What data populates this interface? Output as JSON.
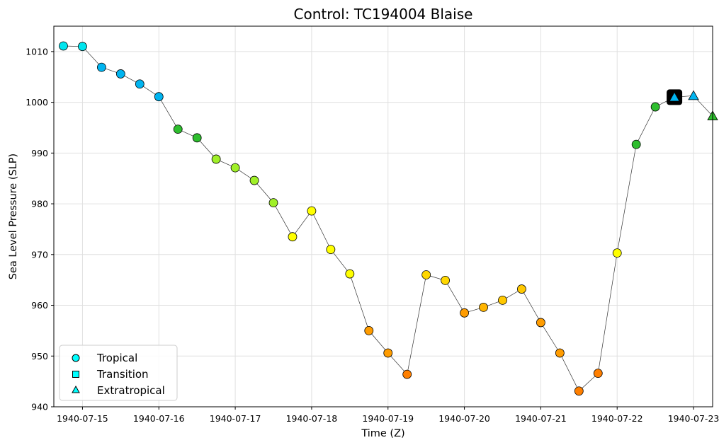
{
  "chart_data": {
    "type": "scatter",
    "title": "Control: TC194004 Blaise",
    "xlabel": "Time (Z)",
    "ylabel": "Sea Level Pressure (SLP)",
    "ylim": [
      940,
      1015
    ],
    "yticks": [
      940,
      950,
      960,
      970,
      980,
      990,
      1000,
      1010
    ],
    "xlim": [
      "1940-07-14 15:00",
      "1940-07-23 06:00"
    ],
    "xticks": [
      "1940-07-15",
      "1940-07-16",
      "1940-07-17",
      "1940-07-18",
      "1940-07-19",
      "1940-07-20",
      "1940-07-21",
      "1940-07-22",
      "1940-07-23"
    ],
    "grid": true,
    "legend": {
      "placement": "lower-left",
      "entries": [
        {
          "label": "Tropical",
          "marker": "circle"
        },
        {
          "label": "Transition",
          "marker": "square"
        },
        {
          "label": "Extratropical",
          "marker": "triangle"
        }
      ]
    },
    "colors": {
      "line": "#333333",
      "legend_fill": "#00ffff",
      "grid": "#e0e0e0"
    },
    "points": [
      {
        "time": "1940-07-14 18:00",
        "slp": 1011.1,
        "marker": "circle",
        "color": "#00e5ee"
      },
      {
        "time": "1940-07-15 00:00",
        "slp": 1011.0,
        "marker": "circle",
        "color": "#00e5ee"
      },
      {
        "time": "1940-07-15 06:00",
        "slp": 1006.9,
        "marker": "circle",
        "color": "#00b4f0"
      },
      {
        "time": "1940-07-15 12:00",
        "slp": 1005.6,
        "marker": "circle",
        "color": "#00b4f0"
      },
      {
        "time": "1940-07-15 18:00",
        "slp": 1003.6,
        "marker": "circle",
        "color": "#00b4f0"
      },
      {
        "time": "1940-07-16 00:00",
        "slp": 1001.1,
        "marker": "circle",
        "color": "#00b4f0"
      },
      {
        "time": "1940-07-16 06:00",
        "slp": 994.7,
        "marker": "circle",
        "color": "#2ebe2e"
      },
      {
        "time": "1940-07-16 12:00",
        "slp": 993.0,
        "marker": "circle",
        "color": "#2ebe2e"
      },
      {
        "time": "1940-07-16 18:00",
        "slp": 988.8,
        "marker": "circle",
        "color": "#a0f028"
      },
      {
        "time": "1940-07-17 00:00",
        "slp": 987.1,
        "marker": "circle",
        "color": "#a0f028"
      },
      {
        "time": "1940-07-17 06:00",
        "slp": 984.6,
        "marker": "circle",
        "color": "#a0f028"
      },
      {
        "time": "1940-07-17 12:00",
        "slp": 980.2,
        "marker": "circle",
        "color": "#a0f028"
      },
      {
        "time": "1940-07-17 18:00",
        "slp": 973.5,
        "marker": "circle",
        "color": "#ffff00"
      },
      {
        "time": "1940-07-18 00:00",
        "slp": 978.6,
        "marker": "circle",
        "color": "#ffff00"
      },
      {
        "time": "1940-07-18 06:00",
        "slp": 971.0,
        "marker": "circle",
        "color": "#ffff00"
      },
      {
        "time": "1940-07-18 12:00",
        "slp": 966.2,
        "marker": "circle",
        "color": "#ffff00"
      },
      {
        "time": "1940-07-18 18:00",
        "slp": 955.0,
        "marker": "circle",
        "color": "#ff9c00"
      },
      {
        "time": "1940-07-19 00:00",
        "slp": 950.6,
        "marker": "circle",
        "color": "#ff9c00"
      },
      {
        "time": "1940-07-19 06:00",
        "slp": 946.4,
        "marker": "circle",
        "color": "#ff7f00"
      },
      {
        "time": "1940-07-19 12:00",
        "slp": 966.0,
        "marker": "circle",
        "color": "#ffd700"
      },
      {
        "time": "1940-07-19 18:00",
        "slp": 964.9,
        "marker": "circle",
        "color": "#ffd700"
      },
      {
        "time": "1940-07-20 00:00",
        "slp": 958.5,
        "marker": "circle",
        "color": "#ff9c00"
      },
      {
        "time": "1940-07-20 06:00",
        "slp": 959.6,
        "marker": "circle",
        "color": "#ffb400"
      },
      {
        "time": "1940-07-20 12:00",
        "slp": 961.0,
        "marker": "circle",
        "color": "#ffc800"
      },
      {
        "time": "1940-07-20 18:00",
        "slp": 963.2,
        "marker": "circle",
        "color": "#ffc800"
      },
      {
        "time": "1940-07-21 00:00",
        "slp": 956.6,
        "marker": "circle",
        "color": "#ff9c00"
      },
      {
        "time": "1940-07-21 06:00",
        "slp": 950.6,
        "marker": "circle",
        "color": "#ff9c00"
      },
      {
        "time": "1940-07-21 12:00",
        "slp": 943.1,
        "marker": "circle",
        "color": "#ff7f00"
      },
      {
        "time": "1940-07-21 18:00",
        "slp": 946.6,
        "marker": "circle",
        "color": "#ff7f00"
      },
      {
        "time": "1940-07-22 00:00",
        "slp": 970.3,
        "marker": "circle",
        "color": "#ffff00"
      },
      {
        "time": "1940-07-22 06:00",
        "slp": 991.7,
        "marker": "circle",
        "color": "#2ebe2e"
      },
      {
        "time": "1940-07-22 12:00",
        "slp": 999.1,
        "marker": "circle",
        "color": "#2ebe2e"
      },
      {
        "time": "1940-07-22 18:00",
        "slp": 1001.0,
        "marker": "triangle",
        "color": "#00b4f0",
        "highlight": true
      },
      {
        "time": "1940-07-23 00:00",
        "slp": 1001.3,
        "marker": "triangle",
        "color": "#00b4f0"
      },
      {
        "time": "1940-07-23 06:00",
        "slp": 997.3,
        "marker": "triangle",
        "color": "#2ebe2e"
      }
    ]
  }
}
